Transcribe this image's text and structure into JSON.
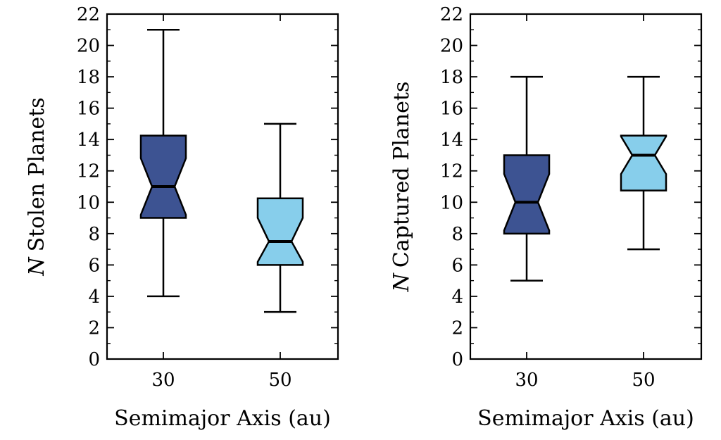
{
  "chart_data": [
    {
      "type": "box",
      "notched": true,
      "xlabel": "Semimajor Axis (au)",
      "ylabel_italic": "N",
      "ylabel": "Stolen Planets",
      "ylim": [
        0,
        22
      ],
      "yticks": [
        "0",
        "2",
        "4",
        "6",
        "8",
        "10",
        "12",
        "14",
        "16",
        "18",
        "20",
        "22"
      ],
      "categories": [
        "30",
        "50"
      ],
      "colors": [
        "#3d5392",
        "#87ceeb"
      ],
      "boxes": [
        {
          "category": "30",
          "whisker_low": 4,
          "q1": 9,
          "median": 11,
          "q3": 14.25,
          "whisker_high": 21,
          "notch_low": 9.2,
          "notch_high": 12.8
        },
        {
          "category": "50",
          "whisker_low": 3,
          "q1": 6,
          "median": 7.5,
          "q3": 10.25,
          "whisker_high": 15,
          "notch_low": 6.2,
          "notch_high": 9.0
        }
      ]
    },
    {
      "type": "box",
      "notched": true,
      "xlabel": "Semimajor Axis (au)",
      "ylabel_italic": "N",
      "ylabel": "Captured Planets",
      "ylim": [
        0,
        22
      ],
      "yticks": [
        "0",
        "2",
        "4",
        "6",
        "8",
        "10",
        "12",
        "14",
        "16",
        "18",
        "20",
        "22"
      ],
      "categories": [
        "30",
        "50"
      ],
      "colors": [
        "#3d5392",
        "#87ceeb"
      ],
      "boxes": [
        {
          "category": "30",
          "whisker_low": 5,
          "q1": 8,
          "median": 10,
          "q3": 13,
          "whisker_high": 18,
          "notch_low": 8.2,
          "notch_high": 11.8
        },
        {
          "category": "50",
          "whisker_low": 7,
          "q1": 10.75,
          "median": 13,
          "q3": 14.25,
          "whisker_high": 18,
          "notch_low": 11.8,
          "notch_high": 14.2
        }
      ]
    }
  ]
}
